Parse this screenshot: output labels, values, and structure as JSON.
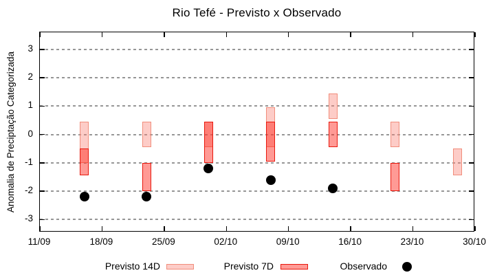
{
  "chart_data": {
    "type": "range-bar+scatter",
    "title": "Rio Tefé - Previsto x Observado",
    "ylabel": "Anomalia de Preciptação Categorizada",
    "xlabel": "",
    "ylim": [
      -3.45,
      3.6
    ],
    "x_axis_days_span": 49,
    "grid": "horizontal dashed",
    "yticks": [
      3,
      2,
      1,
      0,
      -1,
      -2,
      -3
    ],
    "xticks": [
      {
        "day": 0,
        "label": "11/09"
      },
      {
        "day": 7,
        "label": "18/09"
      },
      {
        "day": 14,
        "label": "25/09"
      },
      {
        "day": 21,
        "label": "02/10"
      },
      {
        "day": 28,
        "label": "09/10"
      },
      {
        "day": 35,
        "label": "16/10"
      },
      {
        "day": 42,
        "label": "23/10"
      },
      {
        "day": 49,
        "label": "30/10"
      }
    ],
    "series": [
      {
        "name": "Previsto 14D",
        "kind": "range",
        "fill": "rgba(250,128,114,0.40)",
        "border": "#f18d7b",
        "data": [
          {
            "date": "16/09",
            "day": 5,
            "low": -1.0,
            "high": 0.45
          },
          {
            "date": "23/09",
            "day": 12,
            "low": -0.45,
            "high": 0.45
          },
          {
            "date": "30/09",
            "day": 19,
            "low": -0.45,
            "high": 0.45
          },
          {
            "date": "07/10",
            "day": 26,
            "low": -0.45,
            "high": 0.95
          },
          {
            "date": "14/10",
            "day": 33,
            "low": 0.55,
            "high": 1.45
          },
          {
            "date": "21/10",
            "day": 40,
            "low": -0.45,
            "high": 0.45
          },
          {
            "date": "28/10",
            "day": 47,
            "low": -1.45,
            "high": -0.5
          }
        ]
      },
      {
        "name": "Previsto 7D",
        "kind": "range",
        "fill": "rgba(255,30,20,0.45)",
        "border": "#e8170c",
        "data": [
          {
            "date": "16/09",
            "day": 5,
            "low": -1.45,
            "high": -0.5
          },
          {
            "date": "23/09",
            "day": 12,
            "low": -2.0,
            "high": -1.0
          },
          {
            "date": "30/09",
            "day": 19,
            "low": -1.0,
            "high": 0.45
          },
          {
            "date": "07/10",
            "day": 26,
            "low": -0.95,
            "high": 0.45
          },
          {
            "date": "14/10",
            "day": 33,
            "low": -0.45,
            "high": 0.45
          },
          {
            "date": "21/10",
            "day": 40,
            "low": -2.0,
            "high": -1.0
          }
        ]
      },
      {
        "name": "Observado",
        "kind": "scatter",
        "color": "#000000",
        "data": [
          {
            "date": "16/09",
            "day": 5,
            "value": -2.2
          },
          {
            "date": "23/09",
            "day": 12,
            "value": -2.2
          },
          {
            "date": "30/09",
            "day": 19,
            "value": -1.2
          },
          {
            "date": "07/10",
            "day": 26,
            "value": -1.6
          },
          {
            "date": "14/10",
            "day": 33,
            "value": -1.9
          }
        ]
      }
    ],
    "legend_position": "below-chart"
  },
  "colors": {
    "background": "#ffffff",
    "frame": "#000000",
    "gridline": "#969696",
    "previsto14d_fill_on_white": "#fdccc7",
    "previsto7d_fill_on_white": "#ff9a95",
    "overlap_fill_on_white": "#fb7e74",
    "observado": "#000000"
  }
}
